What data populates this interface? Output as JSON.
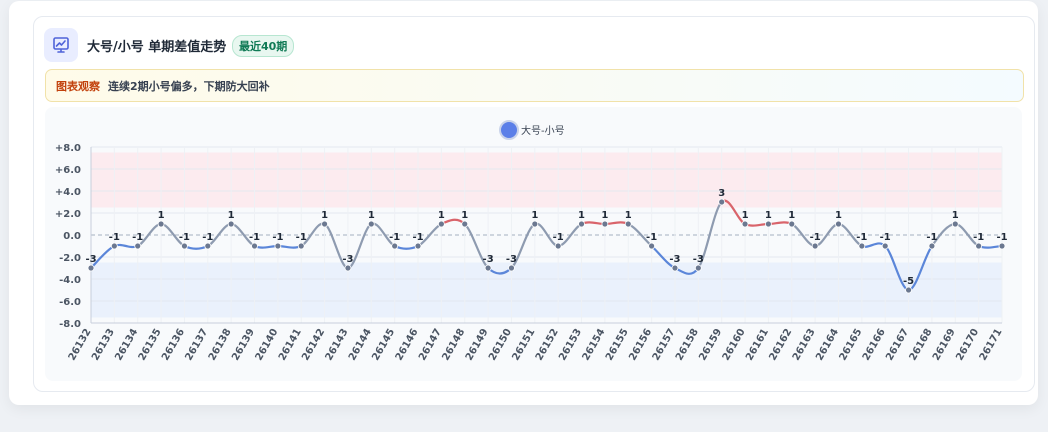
{
  "header": {
    "title": "大号/小号 单期差值走势",
    "badge": "最近40期",
    "icon": "chart-trend-icon"
  },
  "observation": {
    "label": "图表观察",
    "text": "连续2期小号偏多，下期防大回补"
  },
  "colors": {
    "up": "#d9646b",
    "down": "#5b86d9",
    "neutral": "#8e9bb0",
    "legend": "#5b7fe8",
    "upper_band": "#fde8ec",
    "lower_band": "#e7eefc"
  },
  "chart_data": {
    "type": "line",
    "title": "",
    "xlabel": "",
    "ylabel": "",
    "ylim": [
      -8,
      8
    ],
    "yticks": [
      "+8.0",
      "+6.0",
      "+4.0",
      "+2.0",
      "0.0",
      "-2.0",
      "-4.0",
      "-6.0",
      "-8.0"
    ],
    "ytick_values": [
      8,
      6,
      4,
      2,
      0,
      -2,
      -4,
      -6,
      -8
    ],
    "bands": [
      {
        "from": 2.5,
        "to": 7.5
      },
      {
        "from": -7.5,
        "to": -2.5
      }
    ],
    "legend": {
      "position": "top-center"
    },
    "grid": true,
    "x": [
      "26132",
      "26133",
      "26134",
      "26135",
      "26136",
      "26137",
      "26138",
      "26139",
      "26140",
      "26141",
      "26142",
      "26143",
      "26144",
      "26145",
      "26146",
      "26147",
      "26148",
      "26149",
      "26150",
      "26151",
      "26152",
      "26153",
      "26154",
      "26155",
      "26156",
      "26157",
      "26158",
      "26159",
      "26160",
      "26161",
      "26162",
      "26163",
      "26164",
      "26165",
      "26166",
      "26167",
      "26168",
      "26169",
      "26170",
      "26171"
    ],
    "series": [
      {
        "name": "大号-小号",
        "values": [
          -3,
          -1,
          -1,
          1,
          -1,
          -1,
          1,
          -1,
          -1,
          -1,
          1,
          -3,
          1,
          -1,
          -1,
          1,
          1,
          -3,
          -3,
          1,
          -1,
          1,
          1,
          1,
          -1,
          -3,
          -3,
          3,
          1,
          1,
          1,
          -1,
          1,
          -1,
          -1,
          -5,
          -1,
          1,
          -1,
          -1
        ]
      }
    ]
  }
}
